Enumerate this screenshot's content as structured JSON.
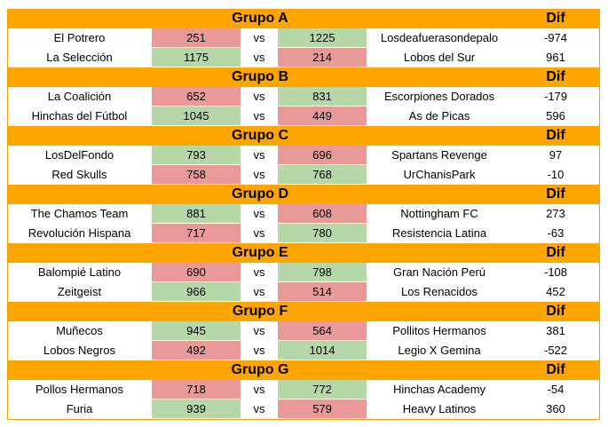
{
  "colors": {
    "header": "#ffa500",
    "win": "#b6d7a8",
    "lose": "#ea9999"
  },
  "vs_label": "vs",
  "dif_label": "Dif",
  "groups": [
    {
      "name": "Grupo A",
      "matches": [
        {
          "team1": "El Potrero",
          "score1": "251",
          "score2": "1225",
          "team2": "Losdeafuerasondepalo",
          "dif": "-974"
        },
        {
          "team1": "La Selección",
          "score1": "1175",
          "score2": "214",
          "team2": "Lobos del Sur",
          "dif": "961"
        }
      ]
    },
    {
      "name": "Grupo B",
      "matches": [
        {
          "team1": "La Coalición",
          "score1": "652",
          "score2": "831",
          "team2": "Escorpiones Dorados",
          "dif": "-179"
        },
        {
          "team1": "Hinchas del Fútbol",
          "score1": "1045",
          "score2": "449",
          "team2": "As de Picas",
          "dif": "596"
        }
      ]
    },
    {
      "name": "Grupo C",
      "matches": [
        {
          "team1": "LosDelFondo",
          "score1": "793",
          "score2": "696",
          "team2": "Spartans Revenge",
          "dif": "97"
        },
        {
          "team1": "Red Skulls",
          "score1": "758",
          "score2": "768",
          "team2": "UrChanisPark",
          "dif": "-10"
        }
      ]
    },
    {
      "name": "Grupo D",
      "matches": [
        {
          "team1": "The Chamos Team",
          "score1": "881",
          "score2": "608",
          "team2": "Nottingham FC",
          "dif": "273"
        },
        {
          "team1": "Revolución Hispana",
          "score1": "717",
          "score2": "780",
          "team2": "Resistencia Latina",
          "dif": "-63"
        }
      ]
    },
    {
      "name": "Grupo E",
      "matches": [
        {
          "team1": "Balompié Latino",
          "score1": "690",
          "score2": "798",
          "team2": "Gran Nación Perú",
          "dif": "-108"
        },
        {
          "team1": "Zeitgeist",
          "score1": "966",
          "score2": "514",
          "team2": "Los Renacidos",
          "dif": "452"
        }
      ]
    },
    {
      "name": "Grupo F",
      "matches": [
        {
          "team1": "Muñecos",
          "score1": "945",
          "score2": "564",
          "team2": "Pollitos Hermanos",
          "dif": "381"
        },
        {
          "team1": "Lobos Negros",
          "score1": "492",
          "score2": "1014",
          "team2": "Legio X Gemina",
          "dif": "-522"
        }
      ]
    },
    {
      "name": "Grupo G",
      "matches": [
        {
          "team1": "Pollos Hermanos",
          "score1": "718",
          "score2": "772",
          "team2": "Hinchas Academy",
          "dif": "-54"
        },
        {
          "team1": "Furia",
          "score1": "939",
          "score2": "579",
          "team2": "Heavy Latinos",
          "dif": "360"
        }
      ]
    }
  ]
}
